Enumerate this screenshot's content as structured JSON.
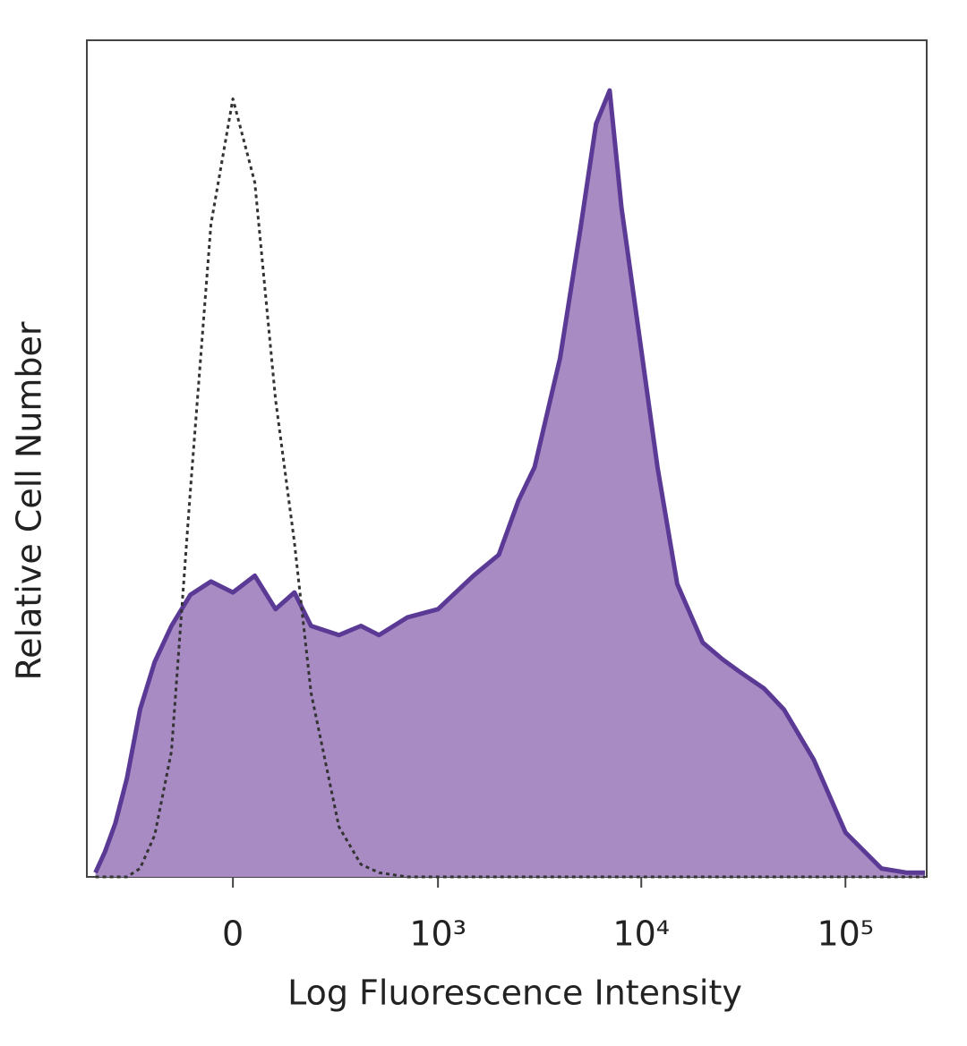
{
  "chart_data": {
    "type": "histogram-overlay",
    "xlabel": "Log Fluorescence Intensity",
    "ylabel": "Relative Cell Number",
    "x_scale": "biexponential",
    "x": [
      -450,
      -400,
      -350,
      -300,
      -250,
      -200,
      -150,
      -100,
      -50,
      0,
      50,
      100,
      150,
      200,
      300,
      400,
      500,
      700,
      1000,
      1500,
      2000,
      2500,
      3000,
      4000,
      5000,
      6000,
      7000,
      8000,
      10000,
      12000,
      15000,
      20000,
      25000,
      30000,
      40000,
      50000,
      70000,
      100000,
      150000,
      200000,
      245000
    ],
    "series": [
      {
        "color": "#5b3a96",
        "fill": "#a98bc4",
        "dashed": false,
        "values": [
          0.5,
          3,
          6.4,
          11.8,
          20,
          25.7,
          30,
          33.7,
          35.3,
          34,
          36,
          32,
          34,
          30,
          28.9,
          30,
          28.9,
          31,
          32,
          36,
          38.5,
          45,
          49,
          62,
          77,
          90,
          94,
          80,
          63,
          49,
          35,
          28,
          26,
          24.6,
          22.5,
          20,
          14,
          5.3,
          1,
          0.5,
          0.5
        ]
      },
      {
        "color": "#333333",
        "fill": null,
        "dashed": true,
        "values": [
          0,
          0,
          0,
          0,
          1,
          5,
          15,
          46,
          78,
          93,
          83,
          57,
          40,
          22,
          6,
          1.5,
          0.5,
          0,
          0,
          0,
          0,
          0,
          0,
          0,
          0,
          0,
          0,
          0,
          0,
          0,
          0,
          0,
          0,
          0,
          0,
          0,
          0,
          0,
          0,
          0,
          0
        ]
      }
    ],
    "xlim": [
      -500,
      250000
    ],
    "xticks": [
      0,
      {
        "value": 1000,
        "label": "10³"
      },
      {
        "value": 10000,
        "label": "10⁴"
      },
      {
        "value": 100000,
        "label": "10⁵"
      }
    ],
    "ylim": [
      0,
      100
    ]
  }
}
